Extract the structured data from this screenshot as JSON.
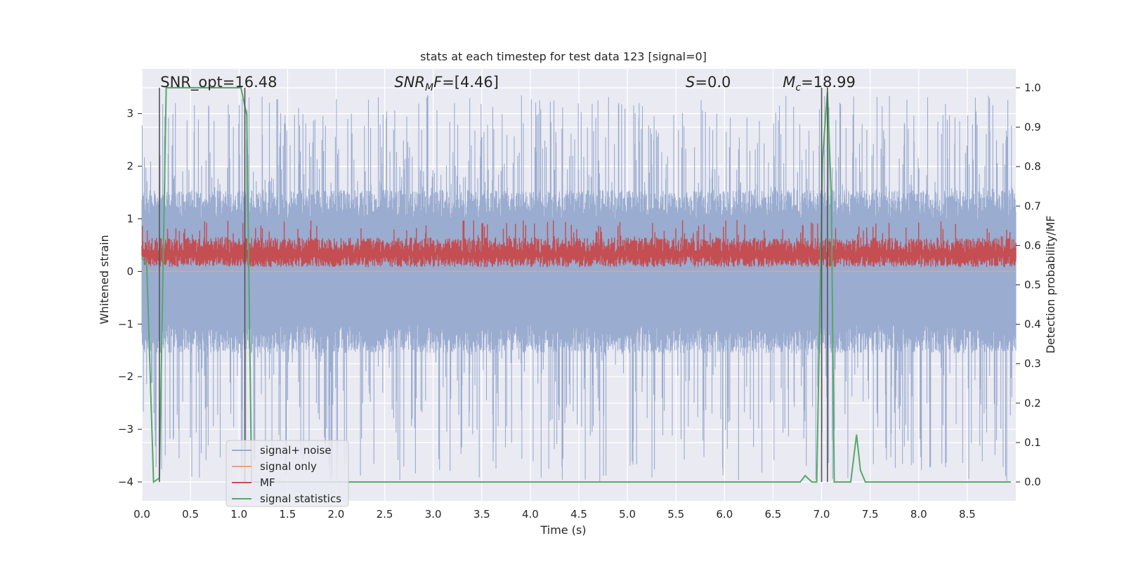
{
  "chart_data": {
    "type": "line",
    "title": "stats at each timestep for test data 123 [signal=0]",
    "xlabel": "Time (s)",
    "ylabel": "Whitened strain",
    "y2label": "Detection probability/MF",
    "xlim": [
      0.0,
      9.0
    ],
    "ylim": [
      -4.36,
      3.85
    ],
    "y2lim": [
      -0.048,
      1.048
    ],
    "x_ticks": [
      0.0,
      0.5,
      1.0,
      1.5,
      2.0,
      2.5,
      3.0,
      3.5,
      4.0,
      4.5,
      5.0,
      5.5,
      6.0,
      6.5,
      7.0,
      7.5,
      8.0,
      8.5
    ],
    "x_tick_labels": [
      "0.0",
      "0.5",
      "1.0",
      "1.5",
      "2.0",
      "2.5",
      "3.0",
      "3.5",
      "4.0",
      "4.5",
      "5.0",
      "5.5",
      "6.0",
      "6.5",
      "7.0",
      "7.5",
      "8.0",
      "8.5"
    ],
    "y_ticks": [
      -4,
      -3,
      -2,
      -1,
      0,
      1,
      2,
      3
    ],
    "y_tick_labels": [
      "−4",
      "−3",
      "−2",
      "−1",
      "0",
      "1",
      "2",
      "3"
    ],
    "y2_ticks": [
      0.0,
      0.1,
      0.2,
      0.3,
      0.4,
      0.5,
      0.6,
      0.7,
      0.8,
      0.9,
      1.0
    ],
    "y2_tick_labels": [
      "0.0",
      "0.1",
      "0.2",
      "0.3",
      "0.4",
      "0.5",
      "0.6",
      "0.7",
      "0.8",
      "0.9",
      "1.0"
    ],
    "grid": true,
    "legend_placement": "lower-left",
    "annotations": [
      {
        "text": "SNR_opt=16.48",
        "x": 0.19
      },
      {
        "text": "SNR",
        "sub": "M",
        "tail": "F=[4.46]",
        "x": 2.6
      },
      {
        "text": "S",
        "tail": "=0.0",
        "x": 5.6
      },
      {
        "text": "M",
        "sub": "c",
        "tail": "=18.99",
        "x": 6.6
      }
    ],
    "vlines": [
      0.18,
      1.06,
      7.0,
      7.06
    ],
    "series": [
      {
        "name": "signal+ noise",
        "color": "#9aacd0",
        "axis": "left",
        "style": "dense-noise",
        "x_start": 0.0,
        "x_end": 9.0,
        "band_low": -1.0,
        "band_high": 1.0,
        "peak_max": 3.35,
        "peak_min": -4.0
      },
      {
        "name": "signal only",
        "color": "#eca27e",
        "axis": "left",
        "style": "flat",
        "y": 0.0
      },
      {
        "name": "MF",
        "color": "#c44e52",
        "axis": "right",
        "style": "dense-noise",
        "x_start": 0.0,
        "x_end": 9.0,
        "center": 0.58,
        "band_low": 0.545,
        "band_high": 0.62,
        "peak_max": 0.665
      },
      {
        "name": "signal statistics",
        "color": "#55a868",
        "axis": "right",
        "style": "line",
        "x": [
          0.0,
          0.05,
          0.12,
          0.18,
          0.25,
          0.3,
          0.5,
          1.0,
          1.02,
          1.08,
          1.13,
          1.5,
          2.0,
          3.0,
          4.0,
          5.0,
          6.0,
          6.7,
          6.78,
          6.83,
          6.9,
          6.95,
          7.01,
          7.06,
          7.1,
          7.13,
          7.3,
          7.36,
          7.4,
          7.45,
          8.0,
          8.95
        ],
        "y": [
          0.57,
          0.55,
          0.0,
          0.01,
          1.0,
          1.0,
          1.0,
          1.0,
          1.0,
          0.93,
          0.0,
          0.0,
          0.0,
          0.0,
          0.0,
          0.0,
          0.0,
          0.0,
          0.0,
          0.016,
          0.0,
          0.0,
          0.82,
          0.99,
          0.72,
          0.0,
          0.0,
          0.12,
          0.03,
          0.0,
          0.0,
          0.0
        ]
      }
    ]
  }
}
